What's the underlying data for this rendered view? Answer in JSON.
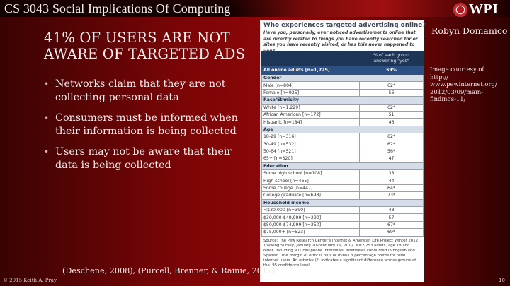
{
  "header": {
    "course_title": "CS 3043 Social Implications Of Computing",
    "logo_text": "WPI",
    "logo_icon": "wpi-seal-icon"
  },
  "slide": {
    "headline_line1": "41% OF USERS ARE NOT",
    "headline_line2": "AWARE OF TARGETED ADS",
    "bullets": [
      {
        "line1": "Networks claim that they are not",
        "line2": "collecting personal data"
      },
      {
        "line1": "Consumers must be informed when",
        "line2": "their information is being collected"
      },
      {
        "line1": "Users may not be aware that their",
        "line2": "data is being collected"
      }
    ],
    "bullet_glyph": "•",
    "author": "Robyn Domanico",
    "courtesy": [
      "Image courtesy of",
      "http://",
      "www.pewinternet.org/",
      "2012/03/09/main-",
      "findings-11/"
    ],
    "citation": "(Deschene, 2008), (Purcell, Brenner, & Rainie, 2012)",
    "copyright": "© 2015 Keith A. Pray",
    "page_number": "10"
  },
  "survey": {
    "title": "Who experiences targeted advertising online?",
    "question": "Have you, personally, ever noticed advertisements online that are directly related to things you have recently searched for or sites you have recently visited, or has this never happened to you?",
    "column_header_line1": "% of each group",
    "column_header_line2": "answering \"yes\"",
    "overall": {
      "label": "All online adults  [n=1,729]",
      "value": "59%"
    },
    "sections": [
      {
        "title": "Gender",
        "rows": [
          {
            "label": "Male [n=804]",
            "value": "62*"
          },
          {
            "label": "Female [n=925]",
            "value": "56"
          }
        ]
      },
      {
        "title": "Race/Ethnicity",
        "rows": [
          {
            "label": "White [n=1,229]",
            "value": "62*"
          },
          {
            "label": "African American [n=172]",
            "value": "51"
          },
          {
            "label": "Hispanic [n=184]",
            "value": "46"
          }
        ]
      },
      {
        "title": "Age",
        "rows": [
          {
            "label": "18-29 [n=316]",
            "value": "62*"
          },
          {
            "label": "30-49 [n=532]",
            "value": "62*"
          },
          {
            "label": "50-64 [n=521]",
            "value": "56*"
          },
          {
            "label": "65+ [n=320]",
            "value": "47"
          }
        ]
      },
      {
        "title": "Education",
        "rows": [
          {
            "label": "Some high school [n=108]",
            "value": "38"
          },
          {
            "label": "High school [n=465]",
            "value": "44"
          },
          {
            "label": "Some college [n=447]",
            "value": "64*"
          },
          {
            "label": "College graduate [n=698]",
            "value": "73*"
          }
        ]
      },
      {
        "title": "Household income",
        "rows": [
          {
            "label": "<$30,000 [n=390]",
            "value": "48"
          },
          {
            "label": "$30,000-$49,999 [n=290]",
            "value": "57"
          },
          {
            "label": "$50,000-$74,999 [n=250]",
            "value": "67*"
          },
          {
            "label": "$75,000+ [n=523]",
            "value": "69*"
          }
        ]
      }
    ],
    "source": "Source: The Pew Research Center's Internet & American Life Project Winter 2012 Tracking Survey, January 20-February 19, 2012. N=2,253 adults, age 18 and older, including 901 cell phone interviews. Interviews conducted in English and Spanish. The margin of error is plus or minus 3 percentage points for total internet users. An asterisk (*) indicates a significant difference across groups at the .95 confidence level."
  },
  "colors": {
    "background_red": "#8e0608",
    "table_header_navy": "#1d3557",
    "table_overall_blue": "#2c4f84",
    "table_section_gray": "#d5dde9"
  }
}
